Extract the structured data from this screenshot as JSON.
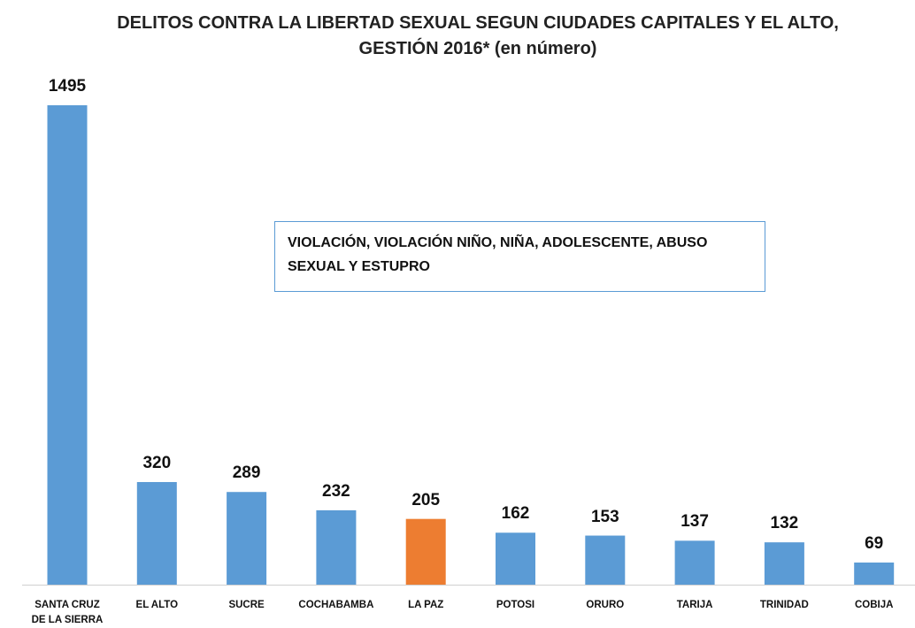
{
  "chart_data": {
    "type": "bar",
    "title": "DELITOS CONTRA LA LIBERTAD SEXUAL  SEGUN CIUDADES CAPITALES Y EL ALTO, GESTIÓN 2016* (en número)",
    "annotation": "VIOLACIÓN, VIOLACIÓN NIÑO, NIÑA, ADOLESCENTE, ABUSO SEXUAL Y ESTUPRO",
    "categories": [
      "SANTA CRUZ DE LA SIERRA",
      "EL ALTO",
      "SUCRE",
      "COCHABAMBA",
      "LA PAZ",
      "POTOSI",
      "ORURO",
      "TARIJA",
      "TRINIDAD",
      "COBIJA"
    ],
    "values": [
      1495,
      320,
      289,
      232,
      205,
      162,
      153,
      137,
      132,
      69
    ],
    "colors": [
      "#5b9bd5",
      "#5b9bd5",
      "#5b9bd5",
      "#5b9bd5",
      "#ed7d31",
      "#5b9bd5",
      "#5b9bd5",
      "#5b9bd5",
      "#5b9bd5",
      "#5b9bd5"
    ]
  }
}
